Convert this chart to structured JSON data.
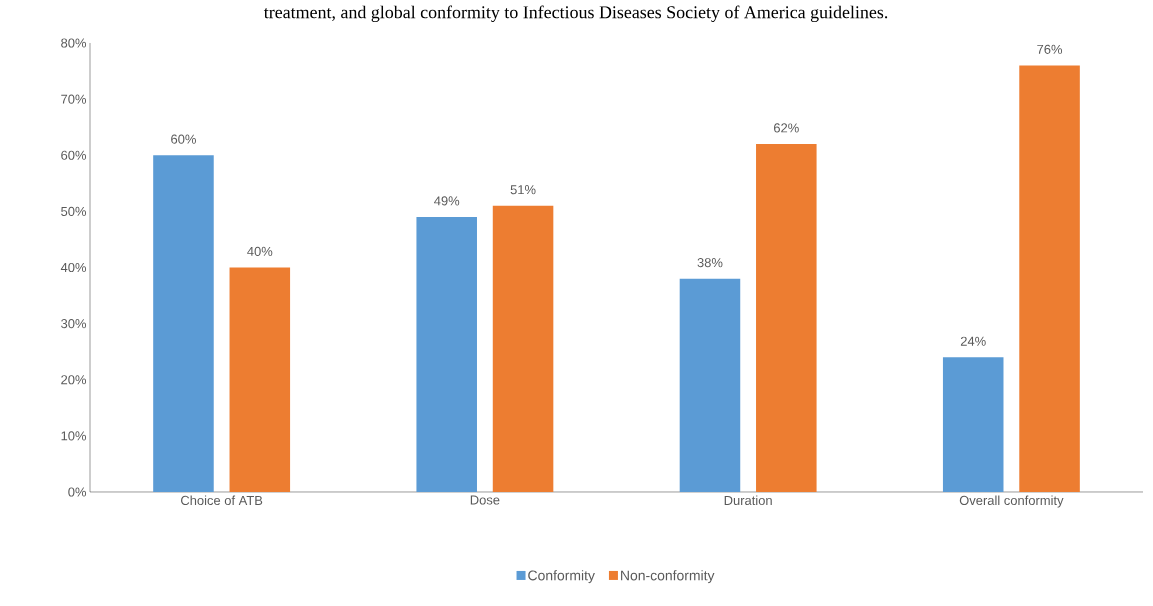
{
  "chart_data": {
    "type": "bar",
    "title": "treatment, and global conformity to Infectious Diseases Society of America guidelines.",
    "categories": [
      "Choice of ATB",
      "Dose",
      "Duration",
      "Overall conformity"
    ],
    "series": [
      {
        "name": "Conformity",
        "color": "#5b9bd5",
        "values": [
          60,
          49,
          38,
          24
        ],
        "value_labels": [
          "60%",
          "49%",
          "38%",
          "24%"
        ]
      },
      {
        "name": "Non-conformity",
        "color": "#ed7d31",
        "values": [
          40,
          51,
          62,
          76
        ],
        "value_labels": [
          "40%",
          "51%",
          "62%",
          "76%"
        ]
      }
    ],
    "ylim": [
      0,
      80
    ],
    "yticks": [
      {
        "value": 0,
        "label": "0%"
      },
      {
        "value": 10,
        "label": "10%"
      },
      {
        "value": 20,
        "label": "20%"
      },
      {
        "value": 30,
        "label": "30%"
      },
      {
        "value": 40,
        "label": "40%"
      },
      {
        "value": 50,
        "label": "50%"
      },
      {
        "value": 60,
        "label": "60%"
      },
      {
        "value": 70,
        "label": "70%"
      },
      {
        "value": 80,
        "label": "80%"
      }
    ],
    "legend": "bottom"
  }
}
